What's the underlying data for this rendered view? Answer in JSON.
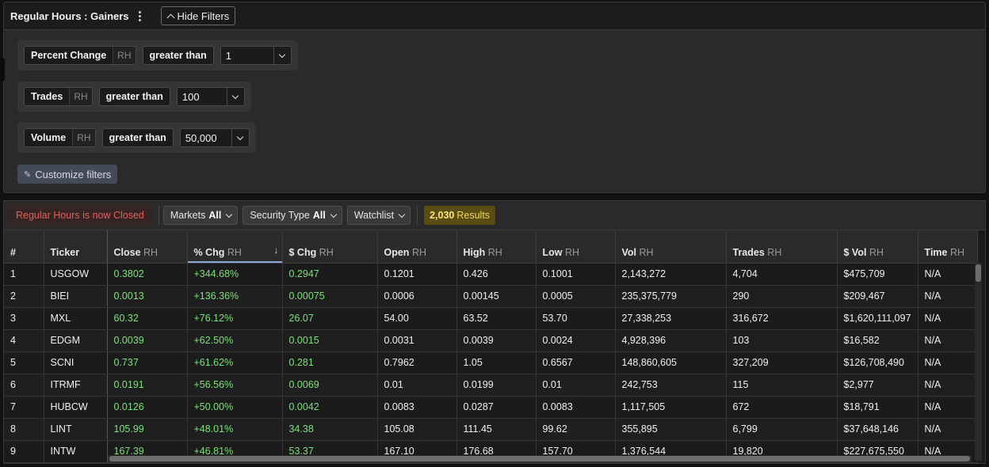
{
  "panel": {
    "title": "Regular Hours : Gainers",
    "hide_filters_label": "Hide Filters",
    "customize_label": "Customize filters"
  },
  "filters": [
    {
      "name": "Percent Change",
      "session": "RH",
      "operator": "greater than",
      "value": "1"
    },
    {
      "name": "Trades",
      "session": "RH",
      "operator": "greater than",
      "value": "100"
    },
    {
      "name": "Volume",
      "session": "RH",
      "operator": "greater than",
      "value": "50,000"
    }
  ],
  "toolbar": {
    "status": "Regular Hours is now Closed",
    "markets_label": "Markets",
    "markets_value": "All",
    "security_label": "Security Type",
    "security_value": "All",
    "watchlist_label": "Watchlist",
    "results_count": "2,030",
    "results_label": "Results"
  },
  "table": {
    "columns": [
      {
        "label": "#",
        "rh": ""
      },
      {
        "label": "Ticker",
        "rh": ""
      },
      {
        "label": "Close",
        "rh": "RH"
      },
      {
        "label": "% Chg",
        "rh": "RH"
      },
      {
        "label": "$ Chg",
        "rh": "RH"
      },
      {
        "label": "Open",
        "rh": "RH"
      },
      {
        "label": "High",
        "rh": "RH"
      },
      {
        "label": "Low",
        "rh": "RH"
      },
      {
        "label": "Vol",
        "rh": "RH"
      },
      {
        "label": "Trades",
        "rh": "RH"
      },
      {
        "label": "$ Vol",
        "rh": "RH"
      },
      {
        "label": "Time",
        "rh": "RH"
      }
    ],
    "rows": [
      [
        "1",
        "USGOW",
        "0.3802",
        "+344.68%",
        "0.2947",
        "0.1201",
        "0.426",
        "0.1001",
        "2,143,272",
        "4,704",
        "$475,709",
        "N/A"
      ],
      [
        "2",
        "BIEI",
        "0.0013",
        "+136.36%",
        "0.00075",
        "0.0006",
        "0.00145",
        "0.0005",
        "235,375,779",
        "290",
        "$209,467",
        "N/A"
      ],
      [
        "3",
        "MXL",
        "60.32",
        "+76.12%",
        "26.07",
        "54.00",
        "63.52",
        "53.70",
        "27,338,253",
        "316,672",
        "$1,620,111,097",
        "N/A"
      ],
      [
        "4",
        "EDGM",
        "0.0039",
        "+62.50%",
        "0.0015",
        "0.0031",
        "0.0039",
        "0.0024",
        "4,928,396",
        "103",
        "$16,582",
        "N/A"
      ],
      [
        "5",
        "SCNI",
        "0.737",
        "+61.62%",
        "0.281",
        "0.7962",
        "1.05",
        "0.6567",
        "148,860,605",
        "327,209",
        "$126,708,490",
        "N/A"
      ],
      [
        "6",
        "ITRMF",
        "0.0191",
        "+56.56%",
        "0.0069",
        "0.01",
        "0.0199",
        "0.01",
        "242,753",
        "115",
        "$2,977",
        "N/A"
      ],
      [
        "7",
        "HUBCW",
        "0.0126",
        "+50.00%",
        "0.0042",
        "0.0083",
        "0.0287",
        "0.0083",
        "1,117,505",
        "672",
        "$18,791",
        "N/A"
      ],
      [
        "8",
        "LINT",
        "105.99",
        "+48.01%",
        "34.38",
        "105.08",
        "111.45",
        "99.62",
        "355,895",
        "6,799",
        "$37,648,146",
        "N/A"
      ],
      [
        "9",
        "INTW",
        "167.39",
        "+46.81%",
        "53.37",
        "167.10",
        "176.68",
        "157.70",
        "1,376,544",
        "19,820",
        "$227,675,550",
        "N/A"
      ]
    ]
  }
}
